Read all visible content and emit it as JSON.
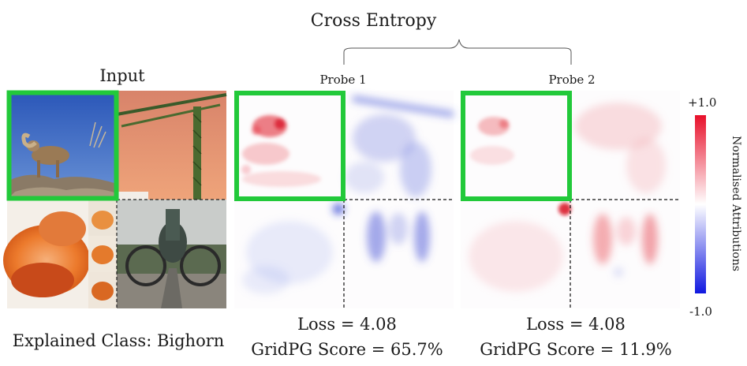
{
  "figure": {
    "header": "Cross Entropy",
    "input_label": "Input",
    "probes": [
      "Probe 1",
      "Probe 2"
    ],
    "explained_class": "Explained Class: Bighorn",
    "results": [
      {
        "loss": "Loss = 4.08",
        "score": "GridPG Score = 65.7%"
      },
      {
        "loss": "Loss = 4.08",
        "score": "GridPG Score = 11.9%"
      }
    ],
    "colorbar": {
      "max_label": "+1.0",
      "min_label": "-1.0",
      "title": "Normalised Attributions",
      "high_color": "#e8102a",
      "low_color": "#1018e0"
    },
    "highlight_color": "#22c93a"
  }
}
